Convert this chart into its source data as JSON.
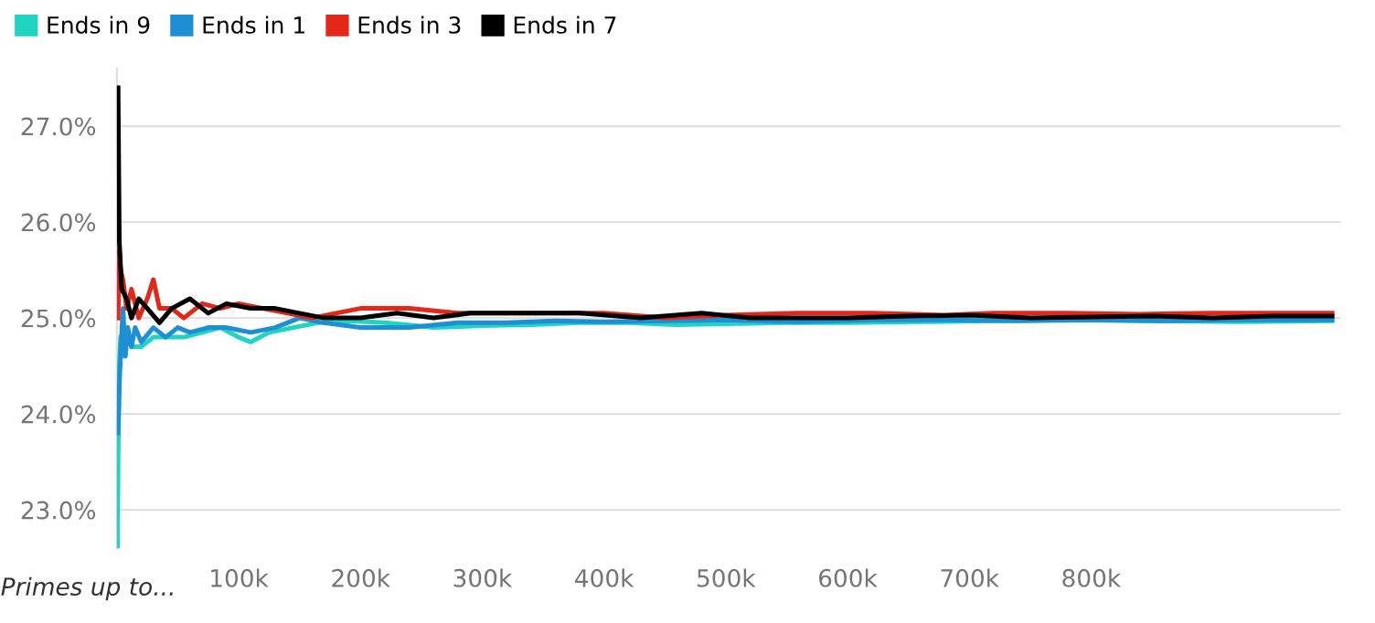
{
  "chart_data": {
    "type": "line",
    "xlabel": "Primes up to...",
    "xlim": [
      0,
      1005
    ],
    "ylim": [
      22.6,
      27.6
    ],
    "xticks": [
      {
        "value": 100,
        "label": "100k"
      },
      {
        "value": 200,
        "label": "200k"
      },
      {
        "value": 300,
        "label": "300k"
      },
      {
        "value": 400,
        "label": "400k"
      },
      {
        "value": 500,
        "label": "500k"
      },
      {
        "value": 600,
        "label": "600k"
      },
      {
        "value": 700,
        "label": "700k"
      },
      {
        "value": 800,
        "label": "800k"
      }
    ],
    "yticks": [
      {
        "value": 23,
        "label": "23.0%"
      },
      {
        "value": 24,
        "label": "24.0%"
      },
      {
        "value": 25,
        "label": "25.0%"
      },
      {
        "value": 26,
        "label": "26.0%"
      },
      {
        "value": 27,
        "label": "27.0%"
      }
    ],
    "grid": "y",
    "legend": "top left",
    "marker": "none",
    "line_style": "solid",
    "series": [
      {
        "name": "Ends in 9",
        "color": "#1fd4c0",
        "x": [
          0.5,
          1,
          2,
          3,
          5,
          8,
          12,
          20,
          30,
          40,
          55,
          70,
          85,
          100,
          110,
          125,
          145,
          165,
          190,
          220,
          260,
          300,
          340,
          380,
          420,
          460,
          500,
          550,
          600,
          660,
          720,
          780,
          850,
          920,
          998
        ],
        "values": [
          22.6,
          23.5,
          24.5,
          24.8,
          24.6,
          24.8,
          24.7,
          24.7,
          24.8,
          24.8,
          24.8,
          24.85,
          24.9,
          24.8,
          24.75,
          24.85,
          24.9,
          24.95,
          24.97,
          24.95,
          24.9,
          24.92,
          24.93,
          24.95,
          24.95,
          24.93,
          24.94,
          24.95,
          24.95,
          24.96,
          24.97,
          24.98,
          24.97,
          24.96,
          24.97
        ]
      },
      {
        "name": "Ends in 1",
        "color": "#1e8fd5",
        "x": [
          1,
          2,
          3,
          5,
          7,
          9,
          12,
          15,
          20,
          30,
          40,
          50,
          60,
          75,
          90,
          110,
          130,
          150,
          170,
          200,
          240,
          280,
          320,
          360,
          400,
          450,
          500,
          560,
          620,
          680,
          740,
          800,
          860,
          920,
          998
        ],
        "values": [
          23.8,
          24.3,
          24.6,
          25.1,
          24.6,
          24.9,
          24.7,
          24.9,
          24.75,
          24.9,
          24.8,
          24.9,
          24.85,
          24.9,
          24.9,
          24.85,
          24.9,
          25.0,
          24.95,
          24.9,
          24.9,
          24.95,
          24.95,
          24.97,
          24.96,
          24.97,
          24.98,
          24.96,
          24.98,
          24.98,
          24.97,
          24.98,
          24.97,
          24.98,
          24.98
        ]
      },
      {
        "name": "Ends in 3",
        "color": "#e3281a",
        "x": [
          1,
          2,
          3,
          5,
          8,
          12,
          18,
          25,
          30,
          35,
          45,
          55,
          70,
          85,
          100,
          120,
          140,
          160,
          180,
          200,
          240,
          280,
          320,
          360,
          400,
          450,
          500,
          560,
          620,
          680,
          720,
          780,
          840,
          900,
          950,
          998
        ],
        "values": [
          25.0,
          25.7,
          25.5,
          25.4,
          25.1,
          25.3,
          25.0,
          25.2,
          25.4,
          25.1,
          25.1,
          25.0,
          25.15,
          25.1,
          25.15,
          25.1,
          25.05,
          25.0,
          25.05,
          25.1,
          25.1,
          25.05,
          25.05,
          25.05,
          25.05,
          25.0,
          25.03,
          25.05,
          25.05,
          25.03,
          25.05,
          25.05,
          25.04,
          25.05,
          25.05,
          25.05
        ]
      },
      {
        "name": "Ends in 7",
        "color": "#000000",
        "x": [
          1,
          2,
          4,
          8,
          12,
          18,
          25,
          35,
          45,
          60,
          75,
          90,
          110,
          130,
          150,
          170,
          200,
          230,
          260,
          290,
          330,
          380,
          430,
          480,
          520,
          560,
          600,
          650,
          700,
          750,
          800,
          850,
          900,
          950,
          998
        ],
        "values": [
          27.4,
          25.8,
          25.3,
          25.2,
          25.0,
          25.2,
          25.1,
          24.95,
          25.1,
          25.2,
          25.05,
          25.15,
          25.1,
          25.1,
          25.05,
          25.0,
          25.0,
          25.05,
          25.0,
          25.05,
          25.05,
          25.05,
          25.0,
          25.05,
          25.0,
          25.0,
          25.0,
          25.02,
          25.03,
          25.0,
          25.01,
          25.02,
          25.0,
          25.02,
          25.02
        ]
      }
    ]
  }
}
